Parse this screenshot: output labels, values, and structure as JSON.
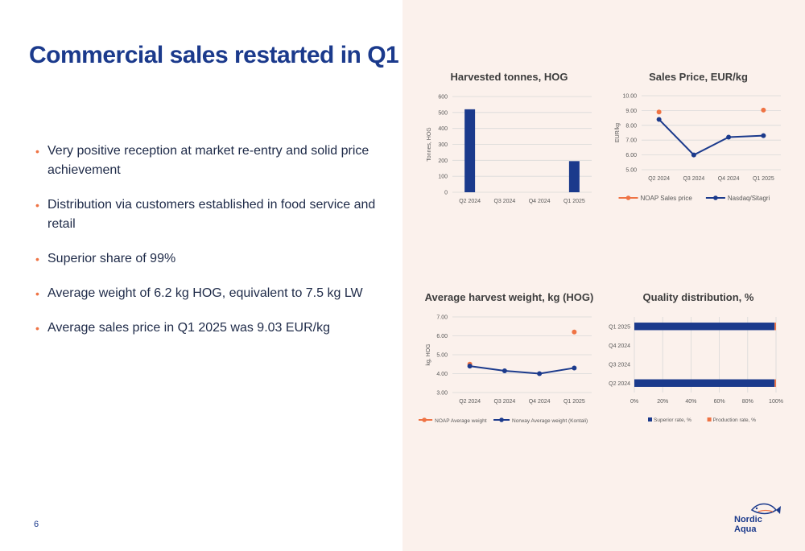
{
  "slide": {
    "title": "Commercial sales restarted in Q1",
    "bullets": [
      "Very positive reception at market re-entry and solid price achievement",
      "Distribution via customers established in food service and retail",
      "Superior share of 99%",
      "Average weight of 6.2 kg HOG, equivalent to 7.5 kg LW",
      "Average sales price in Q1 2025 was 9.03 EUR/kg"
    ],
    "bullet_marker": "•",
    "page_number": "6",
    "logo": {
      "line1": "Nordic",
      "line2": "Aqua",
      "icon": "fish-logo-icon"
    }
  },
  "colors": {
    "title": "#1b3a8c",
    "navy": "#1b3a8c",
    "orange": "#ef7344",
    "right_panel_bg": "#fbf1ec",
    "grid": "#d9d9d9",
    "axis_text": "#595959"
  },
  "chart_data": [
    {
      "id": "harvested",
      "type": "bar",
      "title": "Harvested tonnes, HOG",
      "ylabel": "Tonnes, HOG",
      "categories": [
        "Q2 2024",
        "Q3 2024",
        "Q4 2024",
        "Q1 2025"
      ],
      "values": [
        520,
        0,
        0,
        195
      ],
      "ylim": [
        0,
        600
      ],
      "yticks": [
        "0",
        "100",
        "200",
        "300",
        "400",
        "500",
        "600"
      ],
      "grid": true,
      "legend": "none"
    },
    {
      "id": "price",
      "type": "line",
      "title": "Sales Price, EUR/kg",
      "ylabel": "EUR/kg",
      "categories": [
        "Q2 2024",
        "Q3 2024",
        "Q4 2024",
        "Q1 2025"
      ],
      "series": [
        {
          "name": "NOAP Sales price",
          "values": [
            8.9,
            null,
            null,
            9.03
          ],
          "color": "#ef7344",
          "line": false
        },
        {
          "name": "Nasdaq/Sitagri",
          "values": [
            8.4,
            6.0,
            7.2,
            7.3
          ],
          "color": "#1b3a8c",
          "line": true
        }
      ],
      "ylim": [
        5,
        10
      ],
      "yticks": [
        "5.00",
        "6.00",
        "7.00",
        "8.00",
        "9.00",
        "10.00"
      ],
      "grid": true,
      "legend": "bottom"
    },
    {
      "id": "weight",
      "type": "line",
      "title": "Average harvest weight, kg (HOG)",
      "ylabel": "kg, HOG",
      "categories": [
        "Q2 2024",
        "Q3 2024",
        "Q4 2024",
        "Q1 2025"
      ],
      "series": [
        {
          "name": "NOAP Average weight",
          "values": [
            4.5,
            null,
            null,
            6.2
          ],
          "color": "#ef7344",
          "line": false
        },
        {
          "name": "Norway Average weight (Kontali)",
          "values": [
            4.4,
            4.15,
            4.0,
            4.3
          ],
          "color": "#1b3a8c",
          "line": true
        }
      ],
      "ylim": [
        3,
        7
      ],
      "yticks": [
        "3.00",
        "4.00",
        "5.00",
        "6.00",
        "7.00"
      ],
      "grid": true,
      "legend": "bottom"
    },
    {
      "id": "quality",
      "type": "bar",
      "orientation": "horizontal",
      "stacked": true,
      "title": "Quality distribution, %",
      "categories": [
        "Q2 2024",
        "Q3 2024",
        "Q4 2024",
        "Q1 2025"
      ],
      "series": [
        {
          "name": "Superior rate, %",
          "values": [
            99,
            0,
            0,
            99
          ],
          "color": "#1b3a8c"
        },
        {
          "name": "Production rate, %",
          "values": [
            1,
            0,
            0,
            1
          ],
          "color": "#ef7344"
        }
      ],
      "xlim": [
        0,
        100
      ],
      "xticks": [
        "0%",
        "20%",
        "40%",
        "60%",
        "80%",
        "100%"
      ],
      "grid": true,
      "legend": "bottom"
    }
  ]
}
